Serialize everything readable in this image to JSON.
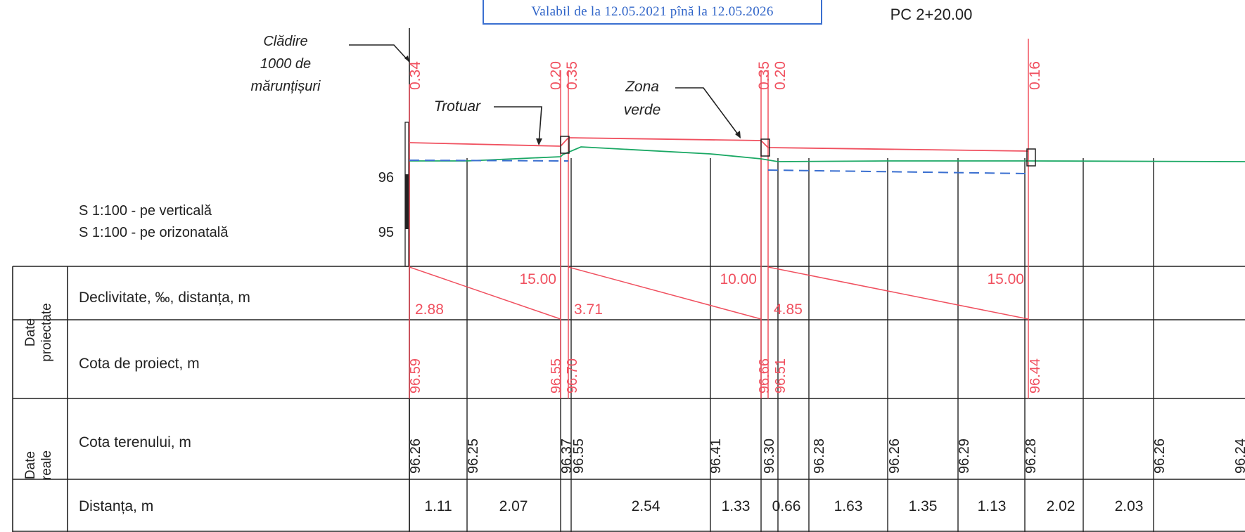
{
  "stamp": {
    "validity": "Valabil de la 12.05.2021 pînă la 12.05.2026"
  },
  "header": {
    "station": "PC 2+20.00"
  },
  "annotations": {
    "building": [
      "Clădire",
      "1000 de",
      "mărunțișuri"
    ],
    "sidewalk": "Trotuar",
    "green_zone": [
      "Zona",
      "verde"
    ]
  },
  "scale": {
    "vertical": "S 1:100 - pe verticală",
    "horizontal": "S 1:100 - pe orizonatală"
  },
  "elevation_ticks": [
    "96",
    "95"
  ],
  "top_labels": [
    "0.34",
    "0.20",
    "0.35",
    "0.35",
    "0.20",
    "0.16"
  ],
  "table": {
    "group_projected": [
      "Date",
      "proiectate"
    ],
    "group_real": [
      "Date",
      "reale"
    ],
    "rows": {
      "slope": "Declivitate, ‰, distanța, m",
      "design_elev": "Cota de proiect, m",
      "ground_elev": "Cota terenului, m",
      "distance": "Distanța, m"
    }
  },
  "slopes": [
    {
      "slope": "2.88",
      "distance": "15.00"
    },
    {
      "slope": "3.71",
      "distance": "10.00"
    },
    {
      "slope": "4.85",
      "distance": "15.00"
    }
  ],
  "design_elevations": [
    "96.59",
    "96.55",
    "96.70",
    "96.66",
    "96.51",
    "96.44"
  ],
  "ground_elevations": [
    "96.26",
    "96.25",
    "96.37",
    "96.55",
    "96.41",
    "96.30",
    "96.28",
    "96.26",
    "96.29",
    "96.28",
    "96.26",
    "96.24"
  ],
  "distances": [
    "1.11",
    "2.07",
    "2.54",
    "1.33",
    "0.66",
    "1.63",
    "1.35",
    "1.13",
    "2.02",
    "2.03"
  ],
  "colors": {
    "design": "#f0505f",
    "ground": "#1aa864",
    "dashed": "#3a6fd0",
    "stamp": "#2f64c8",
    "ink": "#222222"
  }
}
